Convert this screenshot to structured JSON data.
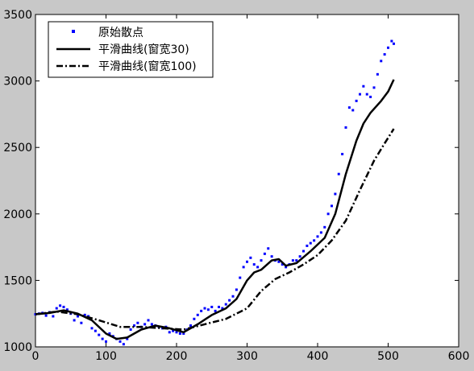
{
  "chart_data": {
    "type": "line",
    "xlim": [
      0,
      600
    ],
    "ylim": [
      1000,
      3500
    ],
    "xticks": [
      "0",
      "100",
      "200",
      "300",
      "400",
      "500",
      "600"
    ],
    "yticks": [
      "1000",
      "1500",
      "2000",
      "2500",
      "3000",
      "3500"
    ],
    "grid": false,
    "legend_position": "top-left",
    "series": [
      {
        "name": "原始散点",
        "style": "points",
        "color": "#0000ff",
        "points": [
          [
            0,
            1245
          ],
          [
            5,
            1250
          ],
          [
            10,
            1255
          ],
          [
            15,
            1235
          ],
          [
            20,
            1260
          ],
          [
            25,
            1230
          ],
          [
            30,
            1290
          ],
          [
            35,
            1310
          ],
          [
            40,
            1300
          ],
          [
            45,
            1280
          ],
          [
            50,
            1250
          ],
          [
            55,
            1200
          ],
          [
            60,
            1230
          ],
          [
            65,
            1180
          ],
          [
            70,
            1240
          ],
          [
            75,
            1230
          ],
          [
            80,
            1140
          ],
          [
            85,
            1120
          ],
          [
            90,
            1090
          ],
          [
            95,
            1060
          ],
          [
            100,
            1040
          ],
          [
            105,
            1100
          ],
          [
            110,
            1080
          ],
          [
            115,
            1060
          ],
          [
            120,
            1040
          ],
          [
            125,
            1020
          ],
          [
            130,
            1060
          ],
          [
            135,
            1130
          ],
          [
            140,
            1160
          ],
          [
            145,
            1180
          ],
          [
            150,
            1150
          ],
          [
            155,
            1170
          ],
          [
            160,
            1200
          ],
          [
            165,
            1170
          ],
          [
            170,
            1160
          ],
          [
            175,
            1150
          ],
          [
            180,
            1140
          ],
          [
            185,
            1150
          ],
          [
            190,
            1110
          ],
          [
            195,
            1120
          ],
          [
            200,
            1110
          ],
          [
            205,
            1100
          ],
          [
            210,
            1100
          ],
          [
            215,
            1130
          ],
          [
            220,
            1160
          ],
          [
            225,
            1210
          ],
          [
            230,
            1240
          ],
          [
            235,
            1270
          ],
          [
            240,
            1290
          ],
          [
            245,
            1280
          ],
          [
            250,
            1300
          ],
          [
            255,
            1270
          ],
          [
            260,
            1300
          ],
          [
            265,
            1290
          ],
          [
            270,
            1320
          ],
          [
            275,
            1350
          ],
          [
            280,
            1380
          ],
          [
            285,
            1430
          ],
          [
            290,
            1520
          ],
          [
            295,
            1600
          ],
          [
            300,
            1640
          ],
          [
            305,
            1670
          ],
          [
            310,
            1620
          ],
          [
            315,
            1600
          ],
          [
            320,
            1650
          ],
          [
            325,
            1700
          ],
          [
            330,
            1740
          ],
          [
            335,
            1680
          ],
          [
            340,
            1650
          ],
          [
            345,
            1640
          ],
          [
            350,
            1620
          ],
          [
            355,
            1600
          ],
          [
            360,
            1620
          ],
          [
            365,
            1650
          ],
          [
            370,
            1650
          ],
          [
            375,
            1680
          ],
          [
            380,
            1720
          ],
          [
            385,
            1760
          ],
          [
            390,
            1780
          ],
          [
            395,
            1800
          ],
          [
            400,
            1830
          ],
          [
            405,
            1860
          ],
          [
            410,
            1900
          ],
          [
            415,
            2000
          ],
          [
            420,
            2060
          ],
          [
            425,
            2150
          ],
          [
            430,
            2300
          ],
          [
            435,
            2450
          ],
          [
            440,
            2650
          ],
          [
            445,
            2800
          ],
          [
            450,
            2780
          ],
          [
            455,
            2850
          ],
          [
            460,
            2900
          ],
          [
            465,
            2960
          ],
          [
            470,
            2900
          ],
          [
            475,
            2880
          ],
          [
            480,
            2950
          ],
          [
            485,
            3050
          ],
          [
            490,
            3150
          ],
          [
            495,
            3200
          ],
          [
            500,
            3250
          ],
          [
            505,
            3300
          ],
          [
            508,
            3280
          ]
        ]
      },
      {
        "name": "平滑曲线(窗宽30)",
        "style": "solid",
        "color": "#000000",
        "points": [
          [
            0,
            1245
          ],
          [
            20,
            1255
          ],
          [
            40,
            1275
          ],
          [
            60,
            1250
          ],
          [
            80,
            1200
          ],
          [
            100,
            1100
          ],
          [
            115,
            1060
          ],
          [
            130,
            1070
          ],
          [
            150,
            1130
          ],
          [
            170,
            1160
          ],
          [
            190,
            1140
          ],
          [
            210,
            1110
          ],
          [
            230,
            1170
          ],
          [
            250,
            1240
          ],
          [
            270,
            1290
          ],
          [
            285,
            1360
          ],
          [
            300,
            1500
          ],
          [
            310,
            1560
          ],
          [
            320,
            1580
          ],
          [
            335,
            1650
          ],
          [
            345,
            1660
          ],
          [
            355,
            1610
          ],
          [
            370,
            1630
          ],
          [
            390,
            1720
          ],
          [
            410,
            1820
          ],
          [
            425,
            2000
          ],
          [
            440,
            2300
          ],
          [
            455,
            2550
          ],
          [
            465,
            2680
          ],
          [
            475,
            2760
          ],
          [
            490,
            2850
          ],
          [
            500,
            2920
          ],
          [
            508,
            3010
          ]
        ]
      },
      {
        "name": "平滑曲线(窗宽100)",
        "style": "dashdot",
        "color": "#000000",
        "points": [
          [
            0,
            1245
          ],
          [
            30,
            1265
          ],
          [
            60,
            1245
          ],
          [
            90,
            1200
          ],
          [
            120,
            1150
          ],
          [
            150,
            1150
          ],
          [
            180,
            1140
          ],
          [
            210,
            1130
          ],
          [
            240,
            1170
          ],
          [
            270,
            1210
          ],
          [
            300,
            1290
          ],
          [
            320,
            1420
          ],
          [
            340,
            1510
          ],
          [
            360,
            1560
          ],
          [
            380,
            1620
          ],
          [
            400,
            1690
          ],
          [
            420,
            1800
          ],
          [
            440,
            1950
          ],
          [
            460,
            2180
          ],
          [
            480,
            2400
          ],
          [
            495,
            2530
          ],
          [
            508,
            2640
          ]
        ]
      }
    ]
  }
}
